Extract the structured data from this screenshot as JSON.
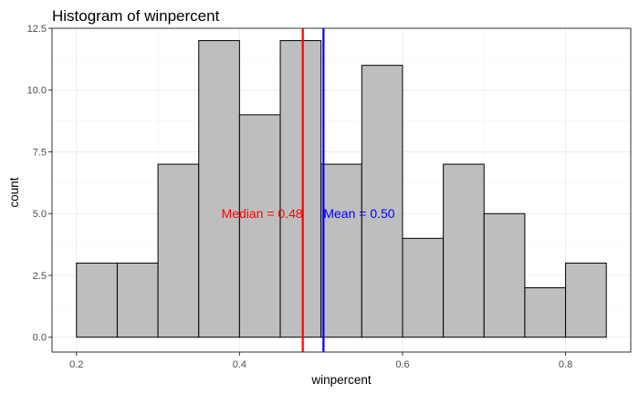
{
  "chart_data": {
    "type": "bar",
    "title": "Histogram of winpercent",
    "xlabel": "winpercent",
    "ylabel": "count",
    "bin_width": 0.05,
    "bins": [
      {
        "start": 0.2,
        "end": 0.25,
        "count": 3
      },
      {
        "start": 0.25,
        "end": 0.3,
        "count": 3
      },
      {
        "start": 0.3,
        "end": 0.35,
        "count": 7
      },
      {
        "start": 0.35,
        "end": 0.4,
        "count": 12
      },
      {
        "start": 0.4,
        "end": 0.45,
        "count": 9
      },
      {
        "start": 0.45,
        "end": 0.5,
        "count": 12
      },
      {
        "start": 0.5,
        "end": 0.55,
        "count": 7
      },
      {
        "start": 0.55,
        "end": 0.6,
        "count": 11
      },
      {
        "start": 0.6,
        "end": 0.65,
        "count": 4
      },
      {
        "start": 0.65,
        "end": 0.7,
        "count": 7
      },
      {
        "start": 0.7,
        "end": 0.75,
        "count": 5
      },
      {
        "start": 0.75,
        "end": 0.8,
        "count": 2
      },
      {
        "start": 0.8,
        "end": 0.85,
        "count": 3
      }
    ],
    "xlim": [
      0.17,
      0.88
    ],
    "ylim": [
      -0.6,
      12.5
    ],
    "xticks": [
      0.2,
      0.4,
      0.6,
      0.8
    ],
    "xtick_labels": [
      "0.2",
      "0.4",
      "0.6",
      "0.8"
    ],
    "yticks": [
      0,
      2.5,
      5,
      7.5,
      10,
      12.5
    ],
    "ytick_labels": [
      "0.0",
      "2.5",
      "5.0",
      "7.5",
      "10.0",
      "12.5"
    ],
    "grid": true,
    "bar_fill": "#bebebe",
    "bar_outline": "#000000",
    "vlines": [
      {
        "x": 0.4776,
        "color": "#ff0000",
        "label": "Median = 0.48",
        "label_y": 5,
        "label_anchor": "end"
      },
      {
        "x": 0.503,
        "color": "#0000ff",
        "label": "Mean = 0.50",
        "label_y": 5,
        "label_anchor": "start"
      }
    ]
  }
}
